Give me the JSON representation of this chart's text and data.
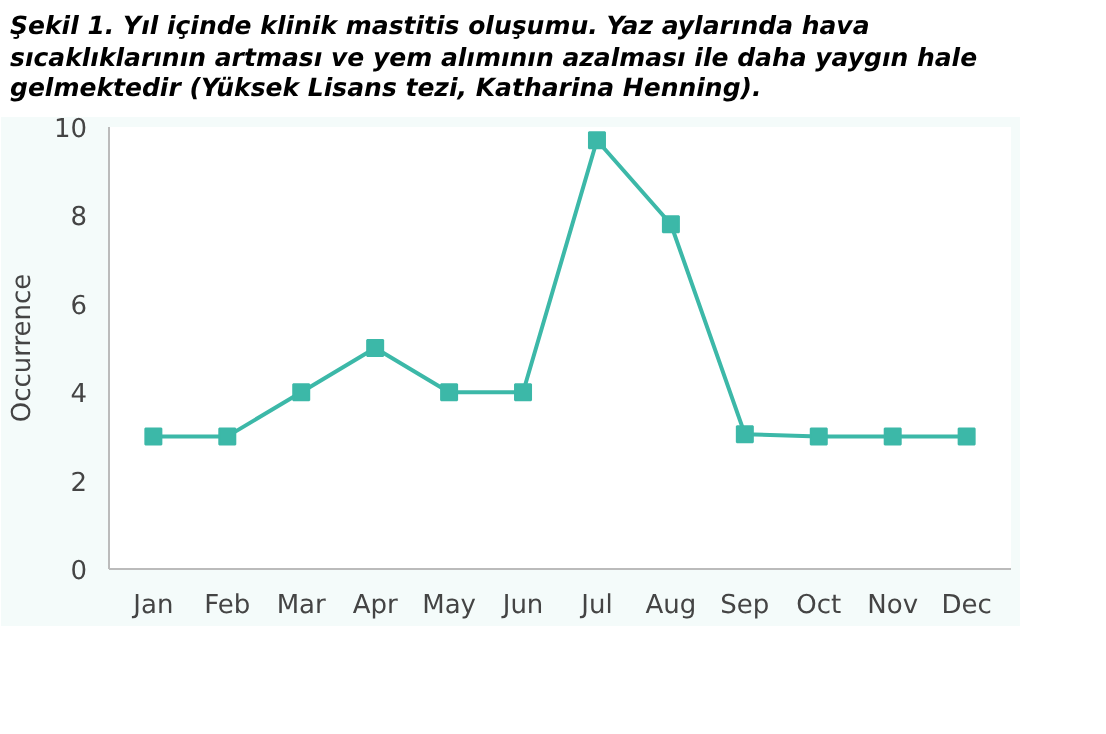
{
  "chart_data": {
    "type": "line",
    "title": "Şekil 1. Yıl içinde klinik mastitis oluşumu. Yaz aylarında hava sıcaklıklarının artması ve yem alımının azalması ile daha yaygın hale gelmektedir (Yüksek Lisans tezi, Katharina Henning).",
    "ylabel": "Occurrence",
    "categories": [
      "Jan",
      "Feb",
      "Mar",
      "Apr",
      "May",
      "Jun",
      "Jul",
      "Aug",
      "Sep",
      "Oct",
      "Nov",
      "Dec"
    ],
    "values": [
      3,
      3,
      4,
      5,
      4,
      4,
      9.7,
      7.8,
      3.05,
      3,
      3,
      3
    ],
    "color": "#3cb8a8",
    "ylim": [
      0,
      10
    ],
    "yticks": [
      0,
      2,
      4,
      6,
      8,
      10
    ],
    "grid": false,
    "marker": "square",
    "line_style": "solid"
  }
}
